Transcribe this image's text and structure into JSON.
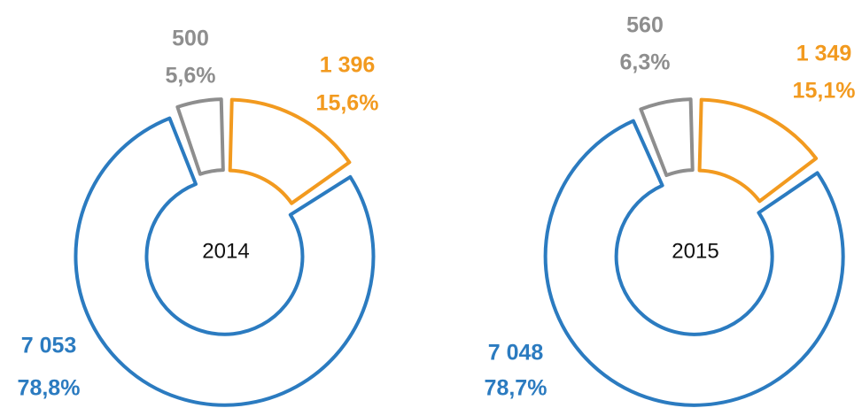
{
  "chart_data": [
    {
      "type": "pie",
      "title": "2014",
      "values": [
        1396,
        7053,
        500
      ],
      "value_labels": [
        "1 396",
        "7 053",
        "500"
      ],
      "shares": [
        15.6,
        78.8,
        5.6
      ],
      "share_labels": [
        "15,6%",
        "78,8%",
        "5,6%"
      ],
      "colors": [
        "#f29a1f",
        "#2b7bc0",
        "#8e8e8e"
      ]
    },
    {
      "type": "pie",
      "title": "2015",
      "values": [
        1349,
        7048,
        560
      ],
      "value_labels": [
        "1 349",
        "7 048",
        "560"
      ],
      "shares": [
        15.1,
        78.7,
        6.3
      ],
      "share_labels": [
        "15,1%",
        "78,7%",
        "6,3%"
      ],
      "colors": [
        "#f29a1f",
        "#2b7bc0",
        "#8e8e8e"
      ]
    }
  ]
}
